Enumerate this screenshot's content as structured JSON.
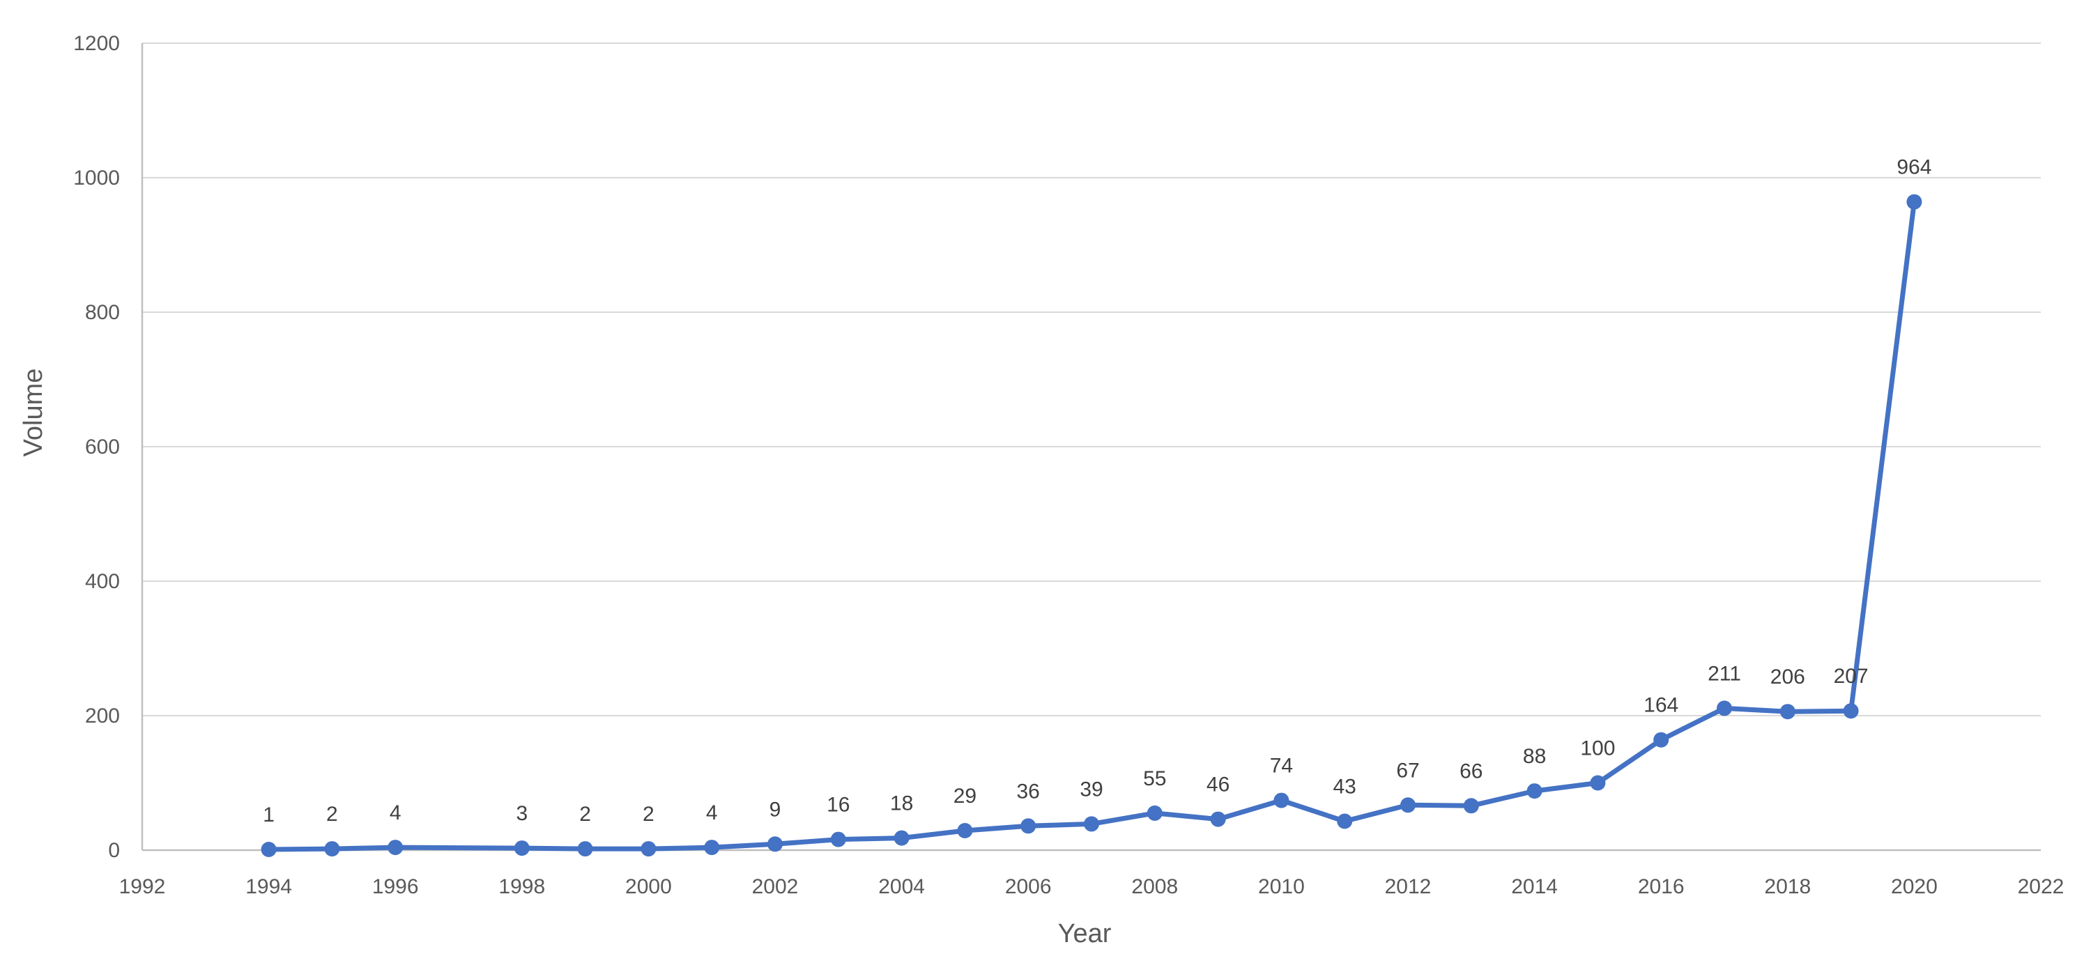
{
  "chart_data": {
    "type": "line",
    "title": "",
    "xlabel": "Year",
    "ylabel": "Volume",
    "x": [
      1994,
      1995,
      1996,
      1998,
      1999,
      2000,
      2001,
      2002,
      2003,
      2004,
      2005,
      2006,
      2007,
      2008,
      2009,
      2010,
      2011,
      2012,
      2013,
      2014,
      2015,
      2016,
      2017,
      2018,
      2019,
      2020
    ],
    "values": [
      1,
      2,
      4,
      3,
      2,
      2,
      4,
      9,
      16,
      18,
      29,
      36,
      39,
      55,
      46,
      74,
      43,
      67,
      66,
      88,
      100,
      164,
      211,
      206,
      207,
      964
    ],
    "data_labels_visible": true,
    "xticks": [
      1992,
      1994,
      1996,
      1998,
      2000,
      2002,
      2004,
      2006,
      2008,
      2010,
      2012,
      2014,
      2016,
      2018,
      2020,
      2022
    ],
    "yticks": [
      0,
      200,
      400,
      600,
      800,
      1000,
      1200
    ],
    "xlim": [
      1992,
      2022
    ],
    "ylim": [
      0,
      1200
    ],
    "grid": "horizontal",
    "legend": "none",
    "marker": "circle",
    "colors": {
      "line": "#4472C4",
      "marker": "#4472C4",
      "data_label": "#404040",
      "tick_label": "#595959",
      "axis_title": "#595959",
      "gridline": "#D9D9D9",
      "axis_line": "#BFBFBF",
      "background": "#FFFFFF"
    }
  }
}
